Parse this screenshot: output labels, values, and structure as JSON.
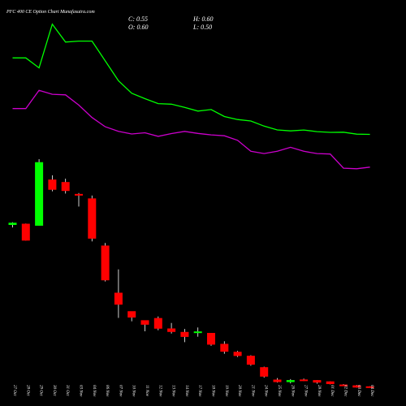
{
  "header": {
    "title": "PFC 400  CE Option  Chart Munafasutra.com",
    "close_label": "C: 0.55",
    "high_label": "H: 0.60",
    "open_label": "O: 0.60",
    "low_label": "L: 0.50"
  },
  "colors": {
    "background": "#000000",
    "up": "#00ff00",
    "down": "#ff0000",
    "line_upper": "#00ff00",
    "line_lower": "#cc00cc",
    "wick": "#ffffff",
    "text": "#ffffff"
  },
  "chart_data": {
    "type": "candlestick",
    "title": "PFC 400  CE Option  Chart Munafasutra.com",
    "x": [
      "27 Oct",
      "28 Oct",
      "29 Oct",
      "30 Oct",
      "31 Oct",
      "03 Nov",
      "04 Nov",
      "06 Nov",
      "07 Nov",
      "10 Nov",
      "11 Nov",
      "12 Nov",
      "13 Nov",
      "14 Nov",
      "17 Nov",
      "18 Nov",
      "19 Nov",
      "20 Nov",
      "21 Nov",
      "24 Nov",
      "25 Nov",
      "26 Nov",
      "27 Nov",
      "28 Nov",
      "01 Dec",
      "02 Dec",
      "03 Dec",
      "04 Dec"
    ],
    "candles": [
      {
        "o": 57.8,
        "h": 60.5,
        "l": 55.2,
        "c": 60.0
      },
      {
        "o": 59.0,
        "h": 59.2,
        "l": 42.0,
        "c": 42.0
      },
      {
        "o": 57.0,
        "h": 124.0,
        "l": 57.0,
        "c": 121.0
      },
      {
        "o": 103.5,
        "h": 107.8,
        "l": 91.6,
        "c": 93.2
      },
      {
        "o": 101.0,
        "h": 104.4,
        "l": 89.4,
        "c": 92.0
      },
      {
        "o": 89.0,
        "h": 89.9,
        "l": 76.3,
        "c": 87.8
      },
      {
        "o": 84.5,
        "h": 87.4,
        "l": 41.2,
        "c": 44.0
      },
      {
        "o": 37.0,
        "h": 39.6,
        "l": 0.8,
        "c": 2.0
      },
      {
        "o": -10.5,
        "h": 13.0,
        "l": -35.9,
        "c": -22.5
      },
      {
        "o": -29.1,
        "h": -30.0,
        "l": -39.3,
        "c": -35.5
      },
      {
        "o": -38.2,
        "h": -38.7,
        "l": -49.4,
        "c": -42.7
      },
      {
        "o": -36.0,
        "h": -34.4,
        "l": -48.3,
        "c": -46.7
      },
      {
        "o": -46.5,
        "h": -41.0,
        "l": -51.6,
        "c": -50.0
      },
      {
        "o": -50.0,
        "h": -47.0,
        "l": -60.3,
        "c": -55.0
      },
      {
        "o": -51.0,
        "h": -45.5,
        "l": -54.8,
        "c": -49.5
      },
      {
        "o": -51.0,
        "h": -51.0,
        "l": -64.0,
        "c": -62.8
      },
      {
        "o": -62.0,
        "h": -59.4,
        "l": -72.0,
        "c": -69.9
      },
      {
        "o": -70.0,
        "h": -69.1,
        "l": -75.2,
        "c": -74.2
      },
      {
        "o": -74.0,
        "h": -73.5,
        "l": -84.0,
        "c": -83.0
      },
      {
        "o": -85.5,
        "h": -85.0,
        "l": -96.0,
        "c": -95.0
      },
      {
        "o": -98.0,
        "h": -96.5,
        "l": -101.0,
        "c": -100.5
      },
      {
        "o": -100.5,
        "h": -97.5,
        "l": -101.8,
        "c": -98.5
      },
      {
        "o": -97.9,
        "h": -97.0,
        "l": -99.4,
        "c": -98.0
      },
      {
        "o": -98.5,
        "h": -98.4,
        "l": -102.1,
        "c": -101.0
      },
      {
        "o": -99.8,
        "h": -99.8,
        "l": -102.8,
        "c": -102.5
      },
      {
        "o": -103.0,
        "h": -102.5,
        "l": -103.9,
        "c": -104.5
      },
      {
        "o": -103.8,
        "h": -103.4,
        "l": -106.1,
        "c": -106.0
      },
      {
        "o": -104.8,
        "h": -104.8,
        "l": -106.2,
        "c": -106.0
      }
    ],
    "line_upper": [
      226.0,
      226.0,
      216.0,
      260.0,
      242.0,
      243.0,
      243.0,
      223.0,
      203.0,
      190.5,
      185.0,
      180.0,
      179.4,
      176.2,
      172.5,
      174.0,
      167.0,
      164.0,
      162.5,
      157.3,
      153.5,
      152.5,
      153.4,
      151.8,
      151.0,
      151.2,
      149.2,
      149.0
    ],
    "line_lower": [
      175.0,
      175.0,
      193.3,
      189.4,
      188.8,
      178.5,
      166.0,
      156.7,
      152.0,
      149.4,
      150.6,
      147.0,
      149.8,
      152.0,
      150.0,
      148.5,
      147.6,
      143.0,
      132.0,
      129.7,
      132.0,
      136.0,
      132.0,
      129.7,
      129.2,
      115.0,
      114.4,
      116.0
    ],
    "ylim": [
      -124.6,
      268.0
    ],
    "xlabel": "",
    "ylabel": "",
    "grid": false
  }
}
